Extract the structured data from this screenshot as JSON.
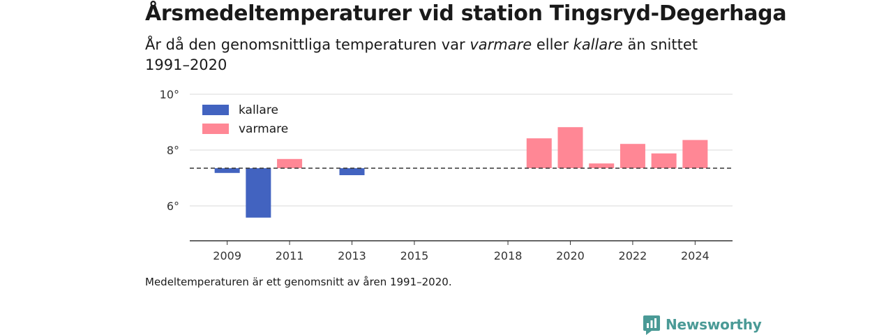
{
  "title": "Årsmedeltemperaturer vid station Tingsryd-Degerhaga",
  "subtitle": {
    "part1": "År då den genomsnittliga temperaturen var ",
    "warm_word": "varmare",
    "part2": " eller ",
    "cold_word": "kallare",
    "part3": " än snittet 1991–2020"
  },
  "note": "Medeltemperaturen är ett genomsnitt av åren 1991–2020.",
  "brand": {
    "name": "Newsworthy",
    "color": "#4a9a96"
  },
  "colors": {
    "kallare": "#4263c0",
    "varmare": "#ff8795"
  },
  "chart_data": {
    "type": "bar",
    "baseline": 7.35,
    "ylim": [
      4.75,
      10
    ],
    "y_ticks": [
      6,
      8,
      10
    ],
    "y_tick_labels": [
      "6°",
      "8°",
      "10°"
    ],
    "x_ticks": [
      2009,
      2011,
      2013,
      2015,
      2018,
      2020,
      2022,
      2024
    ],
    "x_tick_labels": [
      "2009",
      "2011",
      "2013",
      "2015",
      "2018",
      "2020",
      "2022",
      "2024"
    ],
    "x_range": [
      2007.8,
      2025.2
    ],
    "legend": {
      "position": "top-left",
      "items": [
        {
          "label": "kallare",
          "key": "kallare"
        },
        {
          "label": "varmare",
          "key": "varmare"
        }
      ]
    },
    "grid": true,
    "bars": [
      {
        "year": 2009,
        "value": 7.18,
        "group": "kallare"
      },
      {
        "year": 2010,
        "value": 5.58,
        "group": "kallare"
      },
      {
        "year": 2011,
        "value": 7.68,
        "group": "varmare"
      },
      {
        "year": 2013,
        "value": 7.1,
        "group": "kallare"
      },
      {
        "year": 2019,
        "value": 8.42,
        "group": "varmare"
      },
      {
        "year": 2020,
        "value": 8.82,
        "group": "varmare"
      },
      {
        "year": 2021,
        "value": 7.52,
        "group": "varmare"
      },
      {
        "year": 2022,
        "value": 8.22,
        "group": "varmare"
      },
      {
        "year": 2023,
        "value": 7.88,
        "group": "varmare"
      },
      {
        "year": 2024,
        "value": 8.36,
        "group": "varmare"
      }
    ]
  }
}
